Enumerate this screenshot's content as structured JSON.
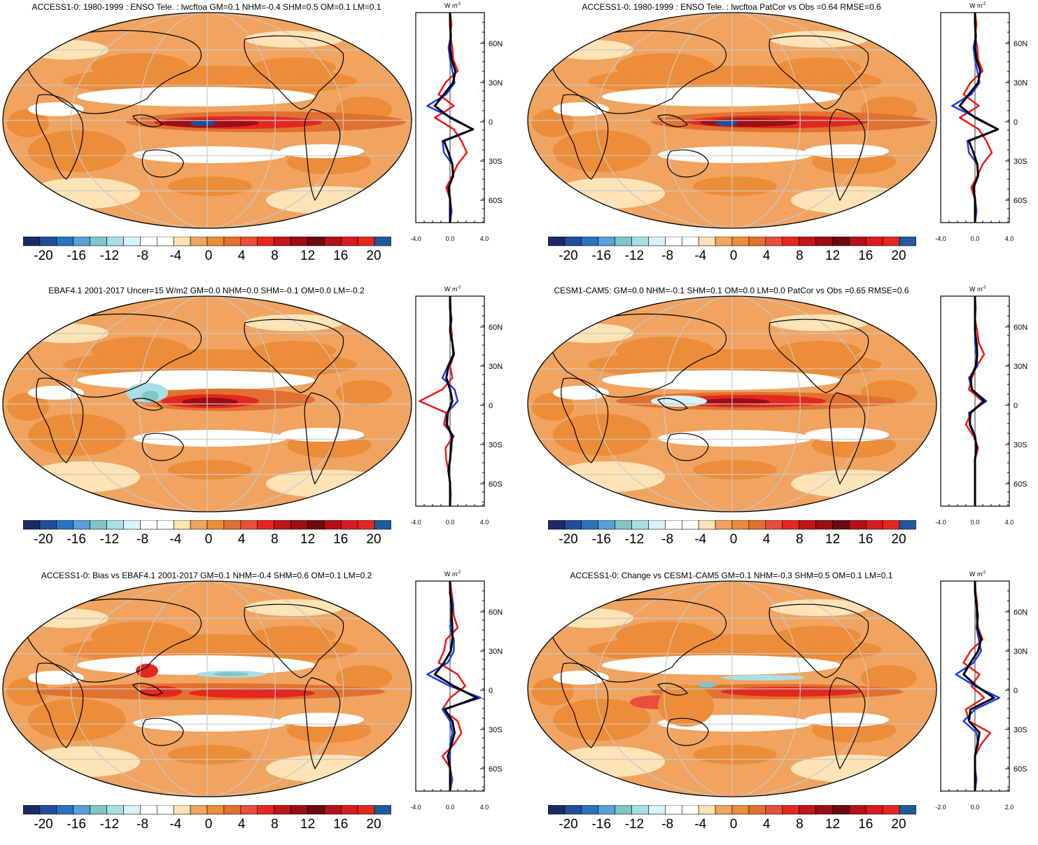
{
  "colorbar": {
    "ticks": [
      "-20",
      "-16",
      "-12",
      "-8",
      "-4",
      "0",
      "4",
      "8",
      "12",
      "16",
      "20"
    ],
    "colors": [
      "#1b2a66",
      "#1f4f96",
      "#2a73c0",
      "#5a9fd8",
      "#7fc6c4",
      "#a9dfe4",
      "#d6f3f7",
      "#ffffff",
      "#ffffff",
      "#fde3b5",
      "#f0a460",
      "#ec8d3a",
      "#e07130",
      "#e84f3c",
      "#e3281f",
      "#c1141b",
      "#9c0d14",
      "#6b0a10",
      "#b31018",
      "#d61b22",
      "#e3281f",
      "#1f5a9a"
    ]
  },
  "profile_axis": {
    "unit_label": "W m",
    "unit_sup": "-2",
    "lat_labels": [
      "60N",
      "30N",
      "0",
      "30S",
      "60S"
    ]
  },
  "palette": {
    "blue_line": "#1a3cf0",
    "red_line": "#f01818",
    "black_line": "#000000"
  },
  "panels": [
    {
      "id": "model",
      "title": "ACCESS1-0: 1980-1999 : ENSO Tele. : lwcftoa GM=0.1 NHM=-0.4 SHM=0.5 OM=0.1 LM=0.1",
      "x_ticks": [
        "-4.0",
        "0.0",
        "4.0"
      ]
    },
    {
      "id": "model-vs-obs",
      "title": "ACCESS1-0: 1980-1999 : ENSO Tele. : lwcftoa PatCor vs Obs =0.64 RMSE=0.6",
      "x_ticks": [
        "-4.0",
        "0.0",
        "4.0"
      ]
    },
    {
      "id": "obs",
      "title": "EBAF4.1 2001-2017 Uncer=15 W/m2 GM=0.0 NHM=0.0 SHM=-0.1 OM=0.0 LM=-0.2",
      "x_ticks": [
        "-4.0",
        "0.0",
        "4.0"
      ]
    },
    {
      "id": "reference-model",
      "title": "CESM1-CAM5: GM=0.0 NHM=-0.1 SHM=0.1 OM=0.0 LM=0.0 PatCor vs Obs =0.65 RMSE=0.6",
      "x_ticks": [
        "-4.0",
        "0.0",
        "4.0"
      ]
    },
    {
      "id": "bias",
      "title": "ACCESS1-0: Bias vs EBAF4.1 2001-2017 GM=0.1 NHM=-0.4 SHM=0.6 OM=0.1 LM=0.2",
      "x_ticks": [
        "-4.0",
        "0.0",
        "4.0"
      ]
    },
    {
      "id": "change",
      "title": "ACCESS1-0: Change vs CESM1-CAM5 GM=0.1 NHM=-0.3 SHM=0.5 OM=0.1 LM=0.1",
      "x_ticks": [
        "-2.0",
        "0.0",
        "2.0"
      ]
    }
  ]
}
